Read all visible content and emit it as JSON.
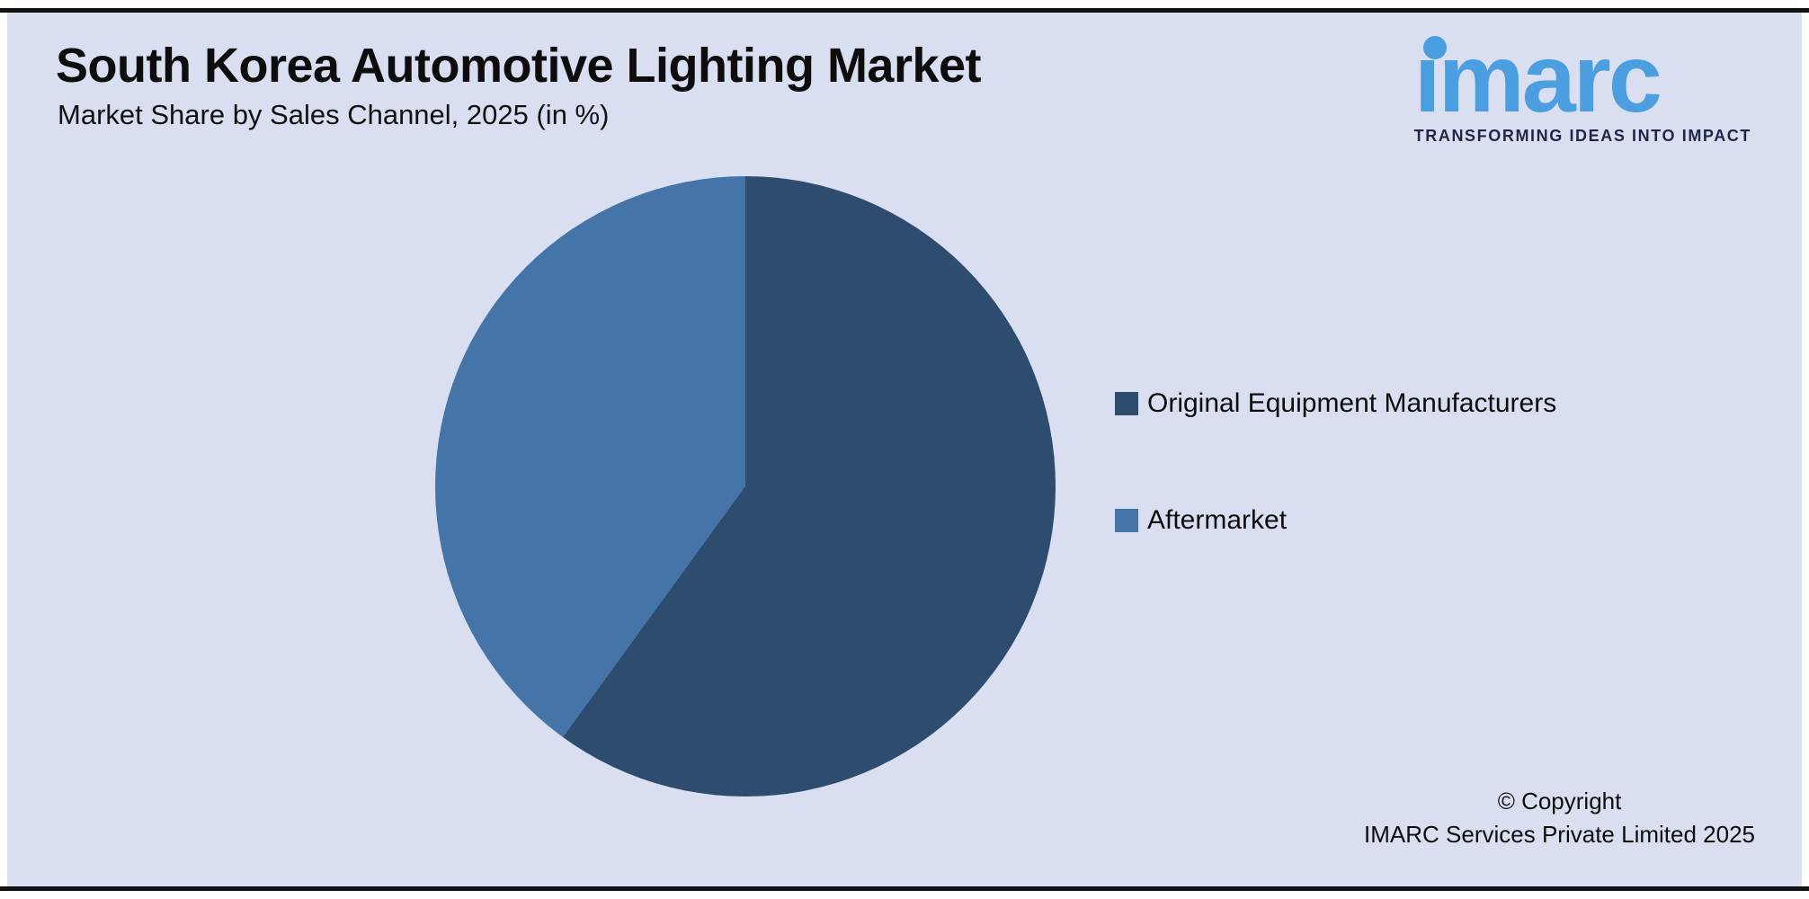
{
  "header": {
    "title": "South Korea Automotive Lighting Market",
    "subtitle": "Market Share by Sales Channel, 2025 (in %)"
  },
  "logo": {
    "brand": "imarc",
    "tagline": "TRANSFORMING IDEAS INTO IMPACT",
    "brand_color": "#4b9fe1",
    "tagline_color": "#1d2746"
  },
  "chart_data": {
    "type": "pie",
    "title": "South Korea Automotive Lighting Market",
    "subtitle": "Market Share by Sales Channel, 2025 (in %)",
    "categories": [
      "Original Equipment Manufacturers",
      "Aftermarket"
    ],
    "values": [
      60,
      40
    ],
    "units": "%",
    "colors": [
      "#2e4d6e",
      "#4474a8"
    ],
    "start_angle_deg": 0,
    "direction": "clockwise",
    "legend_position": "right",
    "background_color": "#d9dff1"
  },
  "legend": {
    "items": [
      {
        "label": "Original Equipment Manufacturers",
        "color": "#2e4d6e"
      },
      {
        "label": "Aftermarket",
        "color": "#4474a8"
      }
    ]
  },
  "footer": {
    "copyright_line1": "© Copyright",
    "copyright_line2": "IMARC Services Private Limited 2025"
  }
}
